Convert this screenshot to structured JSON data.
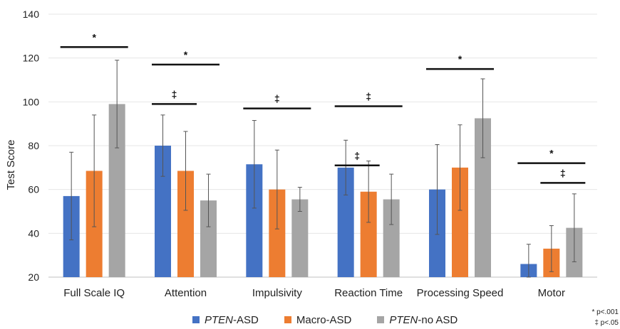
{
  "chart_data": {
    "type": "bar",
    "title": "",
    "xlabel": "",
    "ylabel": "Test Score",
    "ylim": [
      20,
      140
    ],
    "yticks": [
      20,
      40,
      60,
      80,
      100,
      120,
      140
    ],
    "grid": true,
    "legend_position": "bottom",
    "categories": [
      "Full Scale IQ",
      "Attention",
      "Impulsivity",
      "Reaction Time",
      "Processing Speed",
      "Motor"
    ],
    "series": [
      {
        "name": "PTEN-ASD",
        "name_italic": "PTEN",
        "name_rest": "-ASD",
        "color": "#4472C4",
        "values": [
          57,
          80,
          71.5,
          70,
          60,
          26
        ],
        "error": [
          20,
          14,
          20,
          12.5,
          20.5,
          9
        ]
      },
      {
        "name": "Macro-ASD",
        "name_italic": "",
        "name_rest": "Macro-ASD",
        "color": "#ED7D31",
        "values": [
          68.5,
          68.5,
          60,
          59,
          70,
          33
        ],
        "error": [
          25.5,
          18,
          18,
          14,
          19.5,
          10.5
        ]
      },
      {
        "name": "PTEN-no ASD",
        "name_italic": "PTEN",
        "name_rest": "-no ASD",
        "color": "#A5A5A5",
        "values": [
          99,
          55,
          55.5,
          55.5,
          92.5,
          42.5
        ],
        "error": [
          20,
          12,
          5.5,
          11.5,
          18,
          15.5
        ]
      }
    ],
    "annotations": [
      {
        "category_from": 0,
        "category_to": 0,
        "series_from": 0,
        "series_to": 2,
        "y": 125,
        "symbol": "*"
      },
      {
        "category_from": 1,
        "category_to": 1,
        "series_from": 0,
        "series_to": 1,
        "y": 99,
        "symbol": "‡"
      },
      {
        "category_from": 1,
        "category_to": 1,
        "series_from": 0,
        "series_to": 2,
        "y": 117,
        "symbol": "*"
      },
      {
        "category_from": 2,
        "category_to": 2,
        "series_from": 0,
        "series_to": 2,
        "y": 97,
        "symbol": "‡"
      },
      {
        "category_from": 3,
        "category_to": 3,
        "series_from": 0,
        "series_to": 1,
        "y": 71,
        "symbol": "‡"
      },
      {
        "category_from": 3,
        "category_to": 3,
        "series_from": 0,
        "series_to": 2,
        "y": 98,
        "symbol": "‡"
      },
      {
        "category_from": 4,
        "category_to": 4,
        "series_from": 0,
        "series_to": 2,
        "y": 115,
        "symbol": "*"
      },
      {
        "category_from": 5,
        "category_to": 5,
        "series_from": 0,
        "series_to": 2,
        "y": 72,
        "symbol": "*"
      },
      {
        "category_from": 5,
        "category_to": 5,
        "series_from": 1,
        "series_to": 2,
        "y": 63,
        "symbol": "‡"
      }
    ],
    "significance_notes": [
      "* p<.001",
      "‡ p<.05"
    ]
  }
}
